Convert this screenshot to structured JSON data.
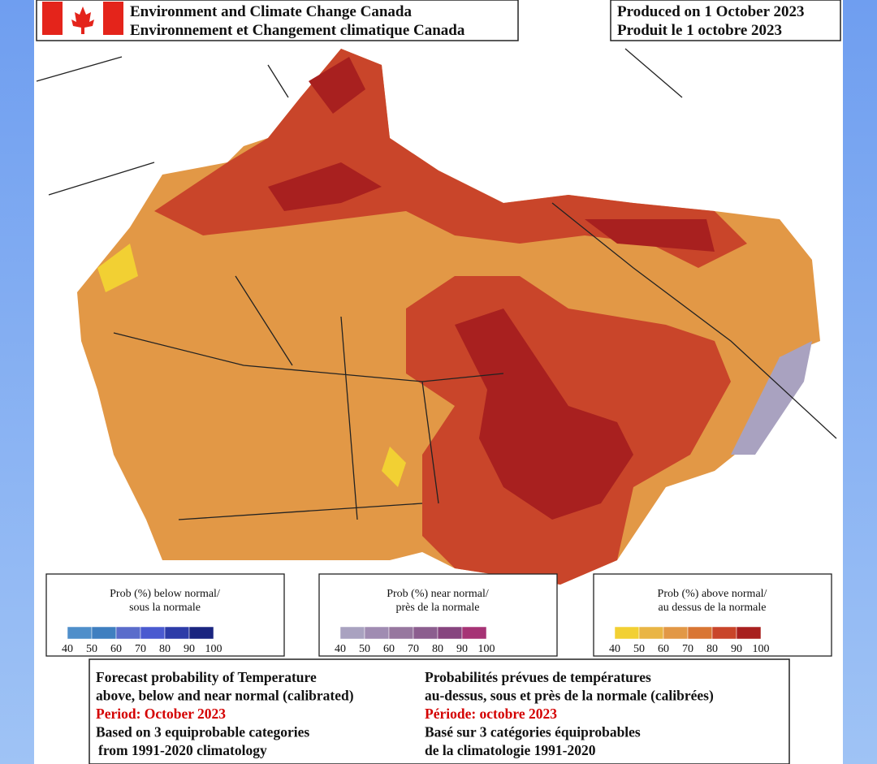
{
  "header": {
    "agency_en": "Environment and Climate Change Canada",
    "agency_fr": "Environnement et Changement climatique Canada",
    "produced_en": "Produced on 1 October 2023",
    "produced_fr": "Produit le 1 octobre 2023"
  },
  "legends": [
    {
      "title_en": "Prob (%) below normal/",
      "title_fr": "sous la normale",
      "scale": [
        40,
        50,
        60,
        70,
        80,
        90,
        100
      ],
      "colors": [
        "#4f8fca",
        "#3f7fc0",
        "#5a6ccb",
        "#4a5ad0",
        "#2d3ca8",
        "#1a2580"
      ]
    },
    {
      "title_en": "Prob (%) near normal/",
      "title_fr": "près de la normale",
      "scale": [
        40,
        50,
        60,
        70,
        80,
        90,
        100
      ],
      "colors": [
        "#a9a2c0",
        "#a08cb2",
        "#97779f",
        "#8c5e8f",
        "#87457f",
        "#a63375"
      ]
    },
    {
      "title_en": "Prob (%) above normal/",
      "title_fr": "au dessus de la normale",
      "scale": [
        40,
        50,
        60,
        70,
        80,
        90,
        100
      ],
      "colors": [
        "#f2d033",
        "#e9b545",
        "#e29846",
        "#d97634",
        "#c9452a",
        "#a8201f"
      ]
    }
  ],
  "description": {
    "en": [
      "Forecast probability of Temperature",
      "above, below and near normal (calibrated)",
      "Period: October 2023",
      "Based on 3 equiprobable categories",
      "from 1991-2020 climatology"
    ],
    "fr": [
      "Probabilités prévues de températures",
      "au-dessus, sous et près de la normale (calibrées)",
      "Période: octobre 2023",
      "Basé sur 3 catégories équiprobables",
      "de la climatologie 1991-2020"
    ],
    "highlight_line": 2
  }
}
